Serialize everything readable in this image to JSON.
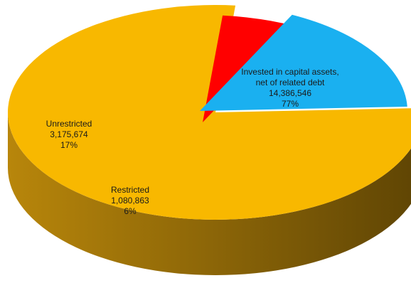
{
  "chart_data": {
    "type": "pie",
    "title": "",
    "style": "3d-exploded",
    "slices": [
      {
        "name_lines": [
          "Invested in capital assets,",
          "net of related debt"
        ],
        "value": 14386546,
        "value_label": "14,386,546",
        "percent_label": "77%",
        "color": "#F8B800",
        "side_color": "#8C6A08"
      },
      {
        "name_lines": [
          "Restricted"
        ],
        "value": 1080863,
        "value_label": "1,080,863",
        "percent_label": "6%",
        "color": "#FF0000",
        "side_color": "#9E0000"
      },
      {
        "name_lines": [
          "Unrestricted"
        ],
        "value": 3175674,
        "value_label": "3,175,674",
        "percent_label": "17%",
        "color": "#1AB0F0",
        "side_color": "#0E7AAE"
      }
    ]
  }
}
